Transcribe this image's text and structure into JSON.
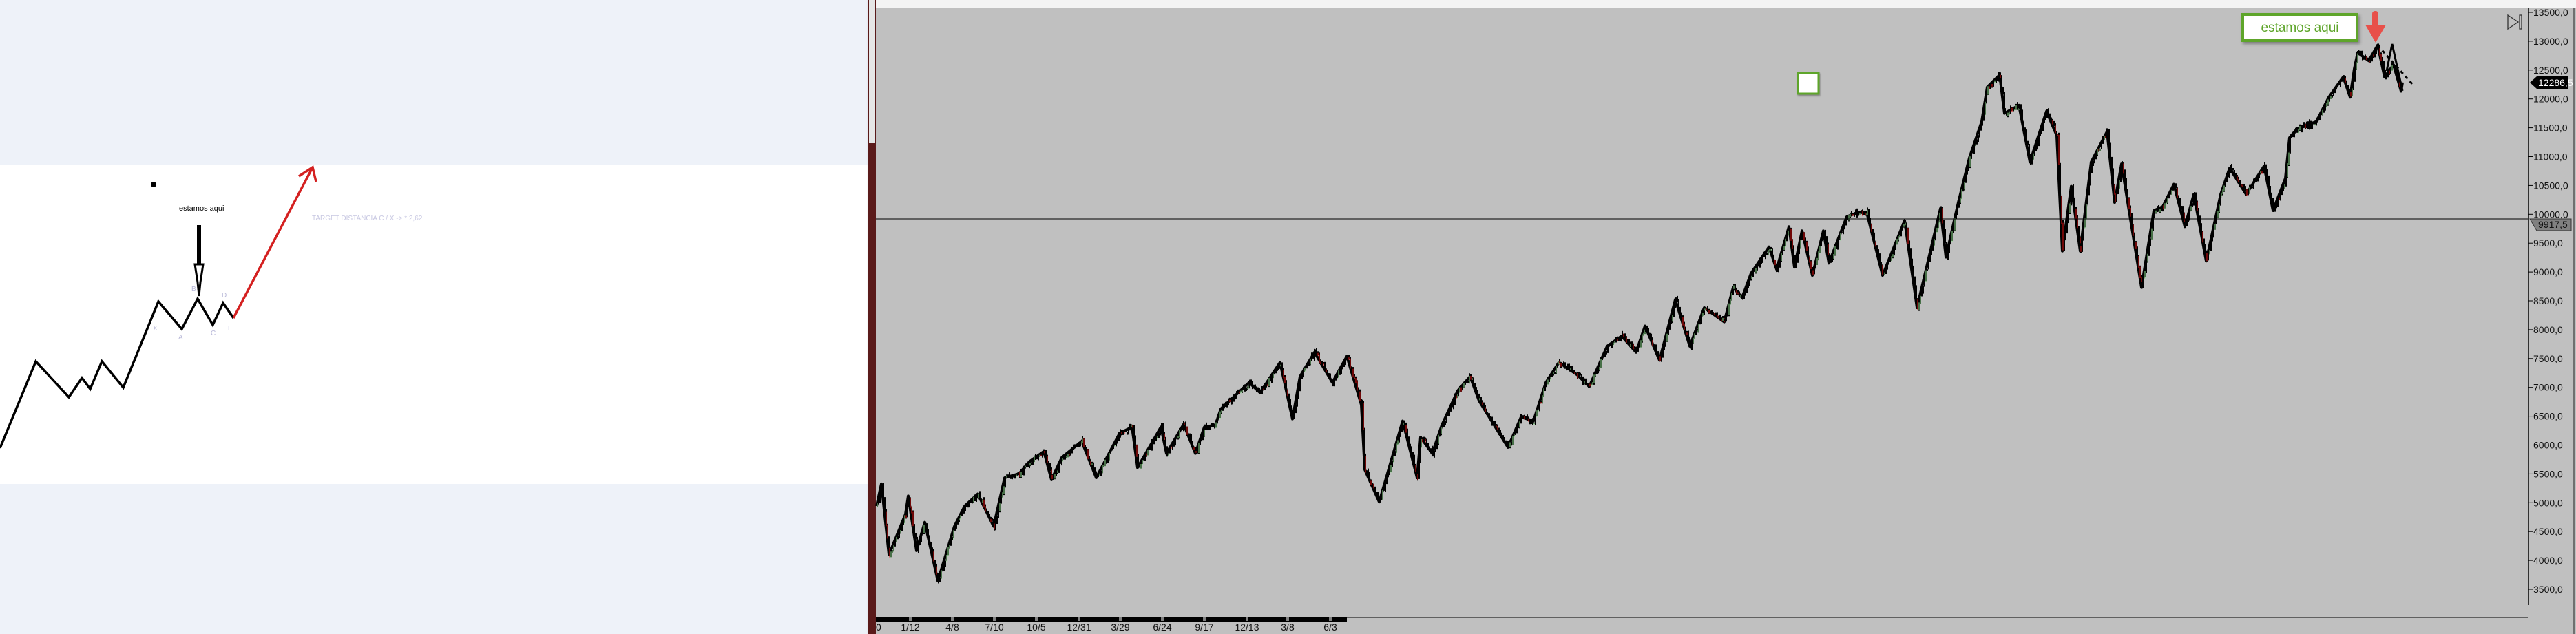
{
  "diagram": {
    "dot_label": "",
    "pointer_label": "estamos aqui",
    "target_note": "TARGET DISTANCIA C / X -> * 2,62",
    "wave_labels": [
      "X",
      "A",
      "B",
      "C",
      "D",
      "E"
    ],
    "colors": {
      "wave": "#000000",
      "target_arrow": "#d42020",
      "labels": "#b8b8d8"
    }
  },
  "chart": {
    "callout_label": "estamos aqui",
    "callout_color": "#5ea52a",
    "arrow_color": "#e8504a",
    "last_price_tag": "12286,5",
    "line_price_tag": "9917,5",
    "scroll_end_icon": "jump-to-end-icon"
  },
  "chart_data": {
    "type": "ohlc",
    "ylim": [
      3500,
      13500
    ],
    "y_ticks": [
      "13500,0",
      "13000,0",
      "12500,0",
      "12000,0",
      "11500,0",
      "11000,0",
      "10500,0",
      "10000,0",
      "9500,0",
      "9000,0",
      "8500,0",
      "8000,0",
      "7500,0",
      "7000,0",
      "6500,0",
      "6000,0",
      "5500,0",
      "5000,0",
      "4500,0",
      "4000,0",
      "3500,0"
    ],
    "x_ticks": [
      "0",
      "1/12",
      "4/8",
      "7/10",
      "10/5",
      "12/31",
      "3/29",
      "6/24",
      "9/17",
      "12/13",
      "3/8",
      "6/3"
    ],
    "horizontal_line": 9917.5,
    "last_price": 12286.5,
    "up_color": "#90e090",
    "down_color": "#e01010",
    "closes": [
      4943,
      5328,
      4100,
      4802,
      5118,
      4170,
      4661,
      3644,
      4591,
      4943,
      5153,
      4591,
      5433,
      5503,
      5714,
      5889,
      5398,
      5784,
      6065,
      5433,
      6205,
      6311,
      5609,
      6311,
      5855,
      6360,
      5855,
      6311,
      6346,
      6626,
      7083,
      6907,
      7433,
      6451,
      7188,
      7609,
      7083,
      7539,
      6697,
      5574,
      5013,
      6416,
      5433,
      6135,
      5855,
      6346,
      6942,
      7188,
      6767,
      5960,
      6486,
      6416,
      7083,
      7433,
      7223,
      7013,
      7714,
      7890,
      7609,
      8065,
      7469,
      8521,
      7714,
      8381,
      8135,
      8732,
      8556,
      8977,
      9434,
      9048,
      9785,
      9083,
      9714,
      8942,
      9714,
      9153,
      9960,
      10030,
      10030,
      8942,
      9890,
      8381,
      10100,
      9258,
      10205,
      10978,
      11609,
      12205,
      12416,
      11750,
      11890,
      10907,
      11785,
      11364,
      9363,
      10486,
      9363,
      10907,
      11434,
      10205,
      10872,
      8732,
      10065,
      10135,
      10521,
      9785,
      10346,
      9188,
      10346,
      10802,
      10346,
      10837,
      10065,
      10626,
      11329,
      11469,
      11609,
      12030,
      12381,
      12030,
      12522,
      12802,
      12662,
      12929,
      12381,
      12592,
      12135,
      12286.5
    ]
  }
}
